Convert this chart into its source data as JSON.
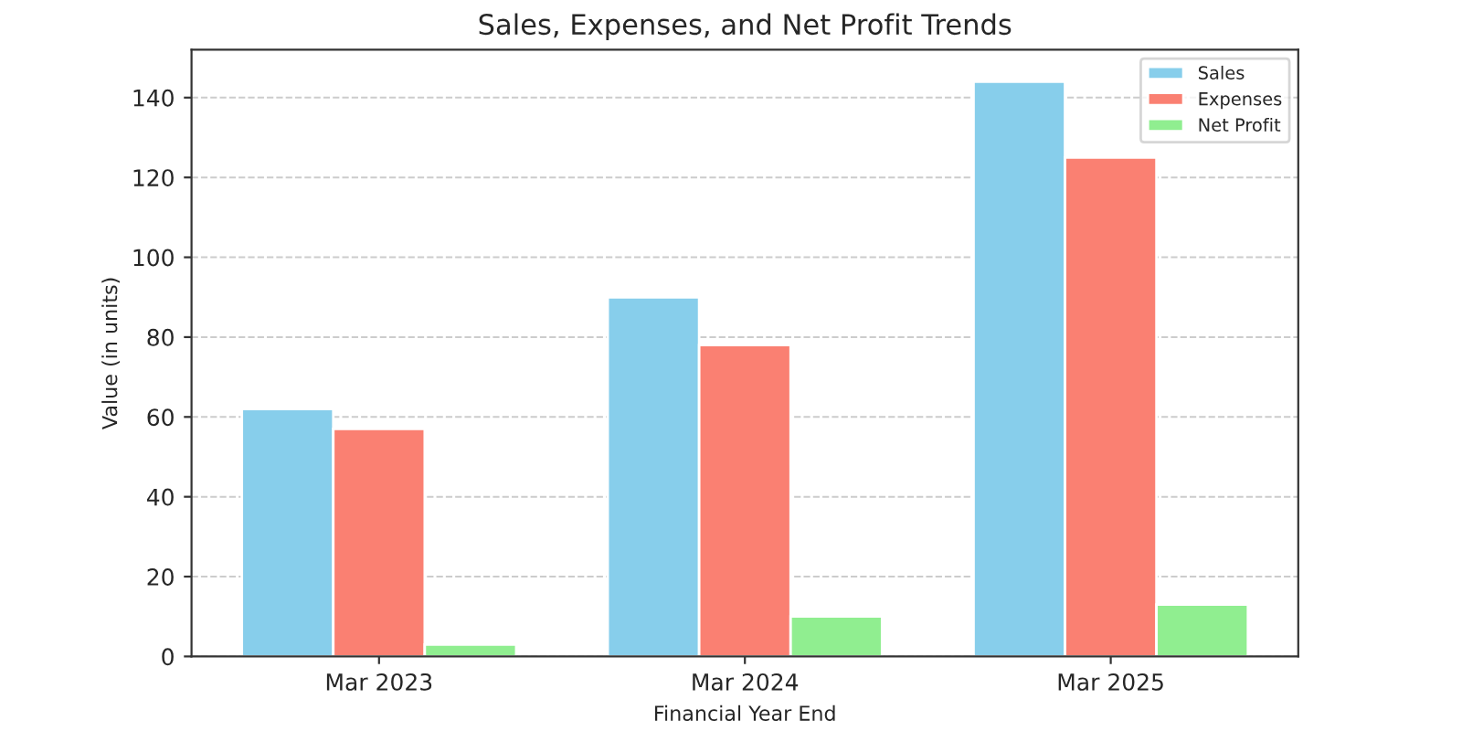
{
  "chart_data": {
    "type": "bar",
    "title": "Sales, Expenses, and Net Profit Trends",
    "xlabel": "Financial Year End",
    "ylabel": "Value (in units)",
    "categories": [
      "Mar 2023",
      "Mar 2024",
      "Mar 2025"
    ],
    "series": [
      {
        "name": "Sales",
        "color": "#87ceeb",
        "values": [
          62,
          90,
          144
        ]
      },
      {
        "name": "Expenses",
        "color": "#fa8072",
        "values": [
          57,
          78,
          125
        ]
      },
      {
        "name": "Net Profit",
        "color": "#90ee90",
        "values": [
          3,
          10,
          13
        ]
      }
    ],
    "ylim": [
      0,
      152
    ],
    "yticks": [
      0,
      20,
      40,
      60,
      80,
      100,
      120,
      140
    ],
    "grid": "y",
    "legend": "top right"
  }
}
